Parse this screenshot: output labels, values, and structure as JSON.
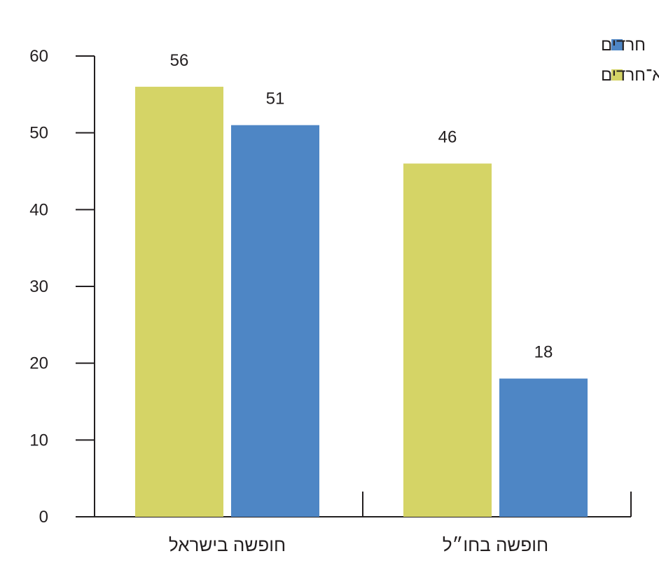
{
  "chart_data": {
    "type": "bar",
    "categories": [
      "חופשה בישראל",
      "חופשה בחו״ל"
    ],
    "series": [
      {
        "name": "יהודים לא־חרדים",
        "color": "#d5d466",
        "values": [
          56,
          46
        ]
      },
      {
        "name": "חרדים",
        "color": "#4e86c5",
        "values": [
          51,
          18
        ]
      }
    ],
    "ylim": [
      0,
      60
    ],
    "yticks": [
      0,
      10,
      20,
      30,
      40,
      50,
      60
    ],
    "ytick_labels": [
      "0",
      "10",
      "20",
      "30",
      "40",
      "50",
      "60"
    ],
    "data_labels": [
      [
        "56",
        "46"
      ],
      [
        "51",
        "18"
      ]
    ],
    "legend": {
      "placement": "top-right",
      "entries": [
        {
          "label": "חרדים",
          "color": "#4e86c5"
        },
        {
          "label": "יהודים לא־חרדים",
          "color": "#d5d466"
        }
      ]
    },
    "grid": false,
    "axis_color": "#231f20"
  }
}
